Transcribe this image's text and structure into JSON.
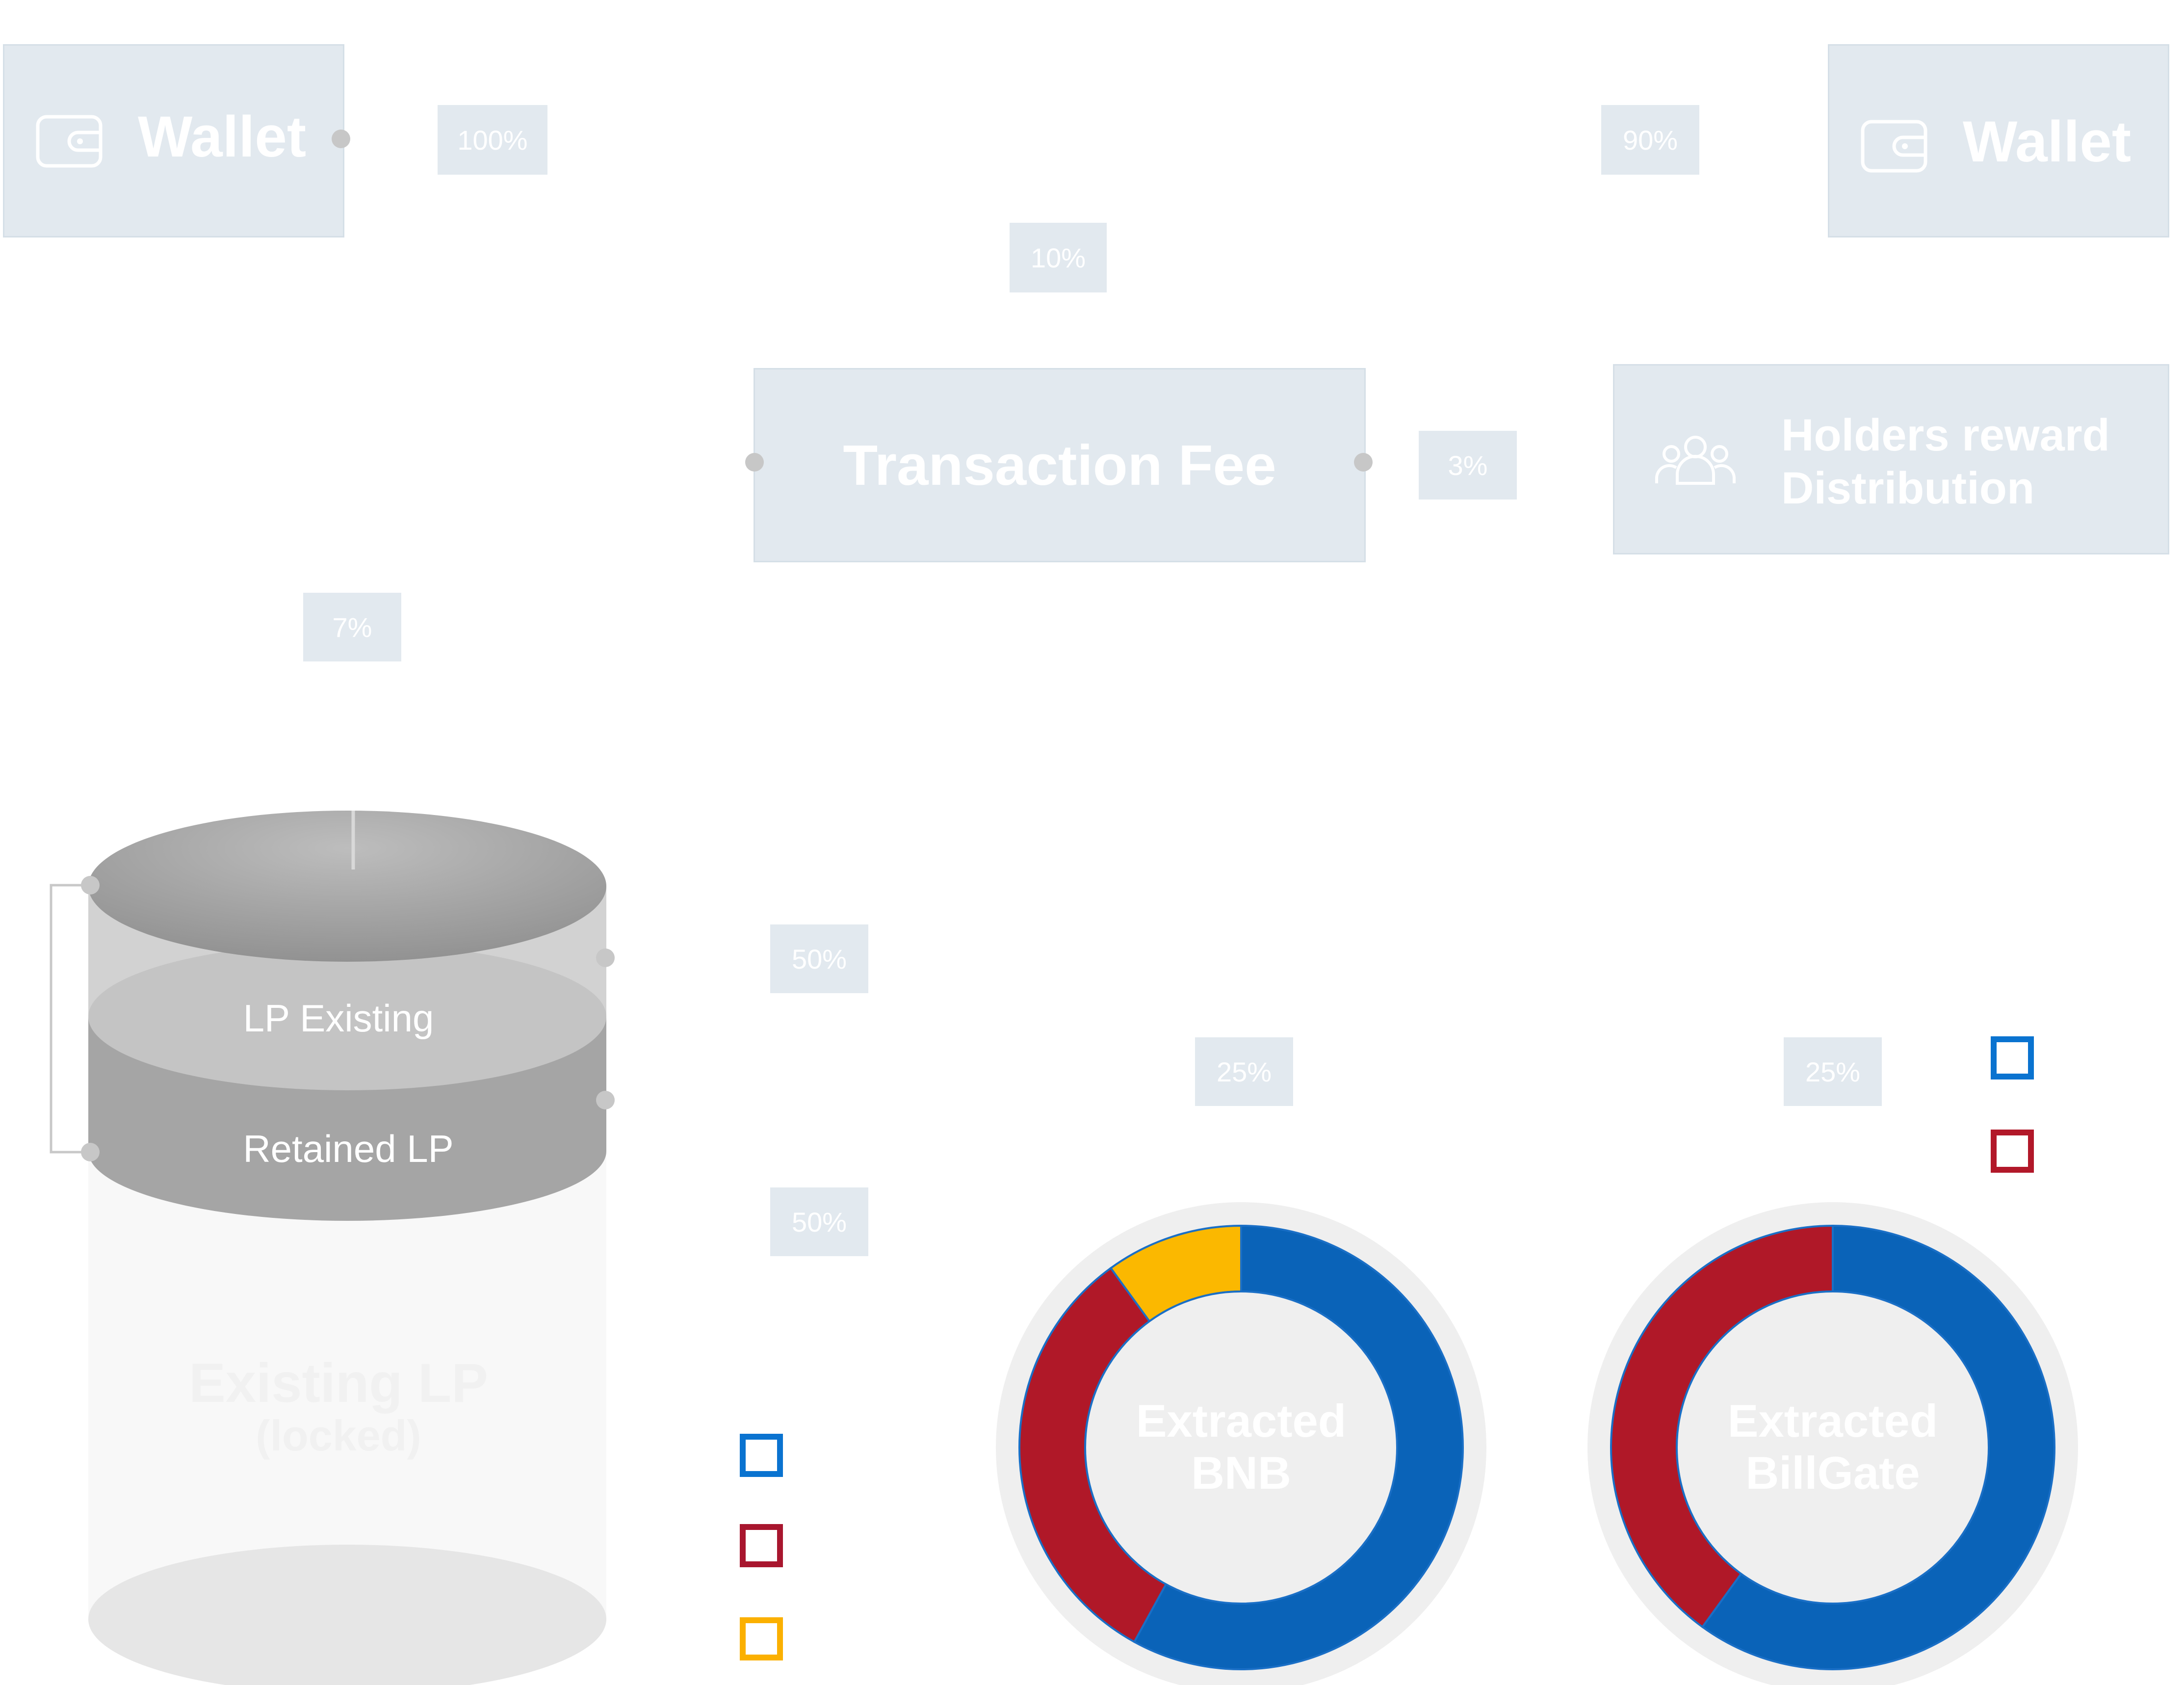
{
  "nodes": {
    "wallet_left": {
      "label": "Wallet",
      "icon": "wallet-icon"
    },
    "wallet_right": {
      "label": "Wallet",
      "icon": "wallet-icon"
    },
    "transaction_fee": {
      "label": "Transaction Fee"
    },
    "holders_reward": {
      "line1": "Holders reward",
      "line2": "Distribution",
      "icon": "users-group-icon"
    }
  },
  "percentages": {
    "wallet_out": "100%",
    "wallet_in": "90%",
    "fee": "10%",
    "holders": "3%",
    "liquidity": "7%",
    "lp_existing_split": "50%",
    "retained_lp_split": "50%",
    "bnb_share": "25%",
    "billgate_share": "25%"
  },
  "cylinder": {
    "layer_top": "LP Existing",
    "layer_middle": "Retained LP",
    "base_line1": "Existing LP",
    "base_line2": "(locked)"
  },
  "donuts": {
    "bnb": {
      "label_line1": "Extracted",
      "label_line2": "BNB",
      "segments": [
        {
          "color": "#0a63b8",
          "fraction": 0.58
        },
        {
          "color": "#b01828",
          "fraction": 0.32
        },
        {
          "color": "#fbb800",
          "fraction": 0.1
        }
      ]
    },
    "billgate": {
      "label_line1": "Extracted",
      "label_line2": "BillGate",
      "segments": [
        {
          "color": "#0a63b8",
          "fraction": 0.6
        },
        {
          "color": "#b01828",
          "fraction": 0.4
        }
      ]
    }
  },
  "legend_colors": {
    "blue": "#0a63b8",
    "red": "#b01828",
    "yellow": "#fbb800"
  }
}
